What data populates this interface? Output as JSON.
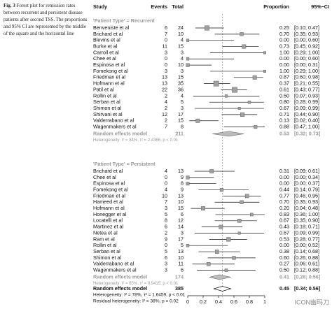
{
  "caption_label": "Fig. 3",
  "caption": "Forest plot for remission rates between recurrent and persistent disease patients after second TSS. The proportions and 95% CI are represented by the middle of the square and the horizontal line",
  "watermark": "ICON幽玛刀",
  "chart_data": {
    "type": "forest",
    "headers": {
      "study": "Study",
      "events": "Events",
      "total": "Total",
      "proportion": "Proportion",
      "ci": "95%−CI"
    },
    "xlim": [
      0,
      1
    ],
    "xticks": [
      0,
      0.2,
      0.4,
      0.6,
      0.8,
      1
    ],
    "square_color": "#a0a0a0",
    "groups": [
      {
        "title": "'Patient Type' = Recurrent",
        "rows": [
          {
            "study": "Benveniste et al",
            "events": 6,
            "total": 24,
            "proportion": {
              "value": 0.25,
              "label": "0.25"
            },
            "ci": {
              "lower": 0.1,
              "upper": 0.47,
              "label": "[0.10; 0.47]"
            }
          },
          {
            "study": "Brichard et al",
            "events": 7,
            "total": 10,
            "proportion": {
              "value": 0.7,
              "label": "0.70"
            },
            "ci": {
              "lower": 0.35,
              "upper": 0.93,
              "label": "[0.35; 0.93]"
            }
          },
          {
            "study": "Blevins et al",
            "events": 0,
            "total": 4,
            "proportion": {
              "value": 0,
              "label": "0.00"
            },
            "ci": {
              "lower": 0,
              "upper": 0.6,
              "label": "[0.00; 0.60]"
            }
          },
          {
            "study": "Burke et al",
            "events": 11,
            "total": 15,
            "proportion": {
              "value": 0.73,
              "label": "0.73"
            },
            "ci": {
              "lower": 0.45,
              "upper": 0.92,
              "label": "[0.45; 0.92]"
            }
          },
          {
            "study": "Carroll et al",
            "events": 3,
            "total": 3,
            "proportion": {
              "value": 1,
              "label": "1.00"
            },
            "ci": {
              "lower": 0.29,
              "upper": 1,
              "label": "[0.29; 1.00]"
            }
          },
          {
            "study": "Chee et al",
            "events": 0,
            "total": 4,
            "proportion": {
              "value": 0,
              "label": "0.00"
            },
            "ci": {
              "lower": 0,
              "upper": 0.6,
              "label": "[0.00; 0.60]"
            }
          },
          {
            "study": "Espinosa et al",
            "events": 0,
            "total": 10,
            "proportion": {
              "value": 0,
              "label": "0.00"
            },
            "ci": {
              "lower": 0,
              "upper": 0.31,
              "label": "[0.00; 0.31]"
            }
          },
          {
            "study": "Fomekong et al",
            "events": 3,
            "total": 3,
            "proportion": {
              "value": 1,
              "label": "1.00"
            },
            "ci": {
              "lower": 0.29,
              "upper": 1,
              "label": "[0.29; 1.00]"
            }
          },
          {
            "study": "Friedman et al",
            "events": 13,
            "total": 15,
            "proportion": {
              "value": 0.87,
              "label": "0.87"
            },
            "ci": {
              "lower": 0.6,
              "upper": 0.98,
              "label": "[0.60; 0.98]"
            }
          },
          {
            "study": "Hofmann et al",
            "events": 13,
            "total": 35,
            "proportion": {
              "value": 0.37,
              "label": "0.37"
            },
            "ci": {
              "lower": 0.21,
              "upper": 0.55,
              "label": "[0.21; 0.55]"
            }
          },
          {
            "study": "Patil et al",
            "events": 22,
            "total": 36,
            "proportion": {
              "value": 0.61,
              "label": "0.61"
            },
            "ci": {
              "lower": 0.43,
              "upper": 0.77,
              "label": "[0.43; 0.77]"
            }
          },
          {
            "study": "Rollin et al",
            "events": 2,
            "total": 4,
            "proportion": {
              "value": 0.5,
              "label": "0.50"
            },
            "ci": {
              "lower": 0.07,
              "upper": 0.93,
              "label": "[0.07; 0.93]"
            }
          },
          {
            "study": "Serban et al",
            "events": 4,
            "total": 5,
            "proportion": {
              "value": 0.8,
              "label": "0.80"
            },
            "ci": {
              "lower": 0.28,
              "upper": 0.99,
              "label": "[0.28; 0.99]"
            }
          },
          {
            "study": "Shimon et al",
            "events": 2,
            "total": 3,
            "proportion": {
              "value": 0.67,
              "label": "0.67"
            },
            "ci": {
              "lower": 0.09,
              "upper": 0.99,
              "label": "[0.09; 0.99]"
            }
          },
          {
            "study": "Shirvani et al",
            "events": 12,
            "total": 17,
            "proportion": {
              "value": 0.71,
              "label": "0.71"
            },
            "ci": {
              "lower": 0.44,
              "upper": 0.9,
              "label": "[0.44; 0.90]"
            }
          },
          {
            "study": "Valderrabano et al",
            "events": 2,
            "total": 15,
            "proportion": {
              "value": 0.13,
              "label": "0.13"
            },
            "ci": {
              "lower": 0.02,
              "upper": 0.4,
              "label": "[0.02; 0.40]"
            }
          },
          {
            "study": "Wagenmakers et al",
            "events": 7,
            "total": 8,
            "proportion": {
              "value": 0.88,
              "label": "0.88"
            },
            "ci": {
              "lower": 0.47,
              "upper": 1,
              "label": "[0.47; 1.00]"
            }
          }
        ],
        "summary": {
          "study": "Random effects model",
          "total": 211,
          "proportion": {
            "value": 0.53,
            "label": "0.53"
          },
          "ci": {
            "lower": 0.32,
            "upper": 0.73,
            "label": "[0.32; 0.73]"
          }
        },
        "heterogeneity": "Heterogeneity: I² = 84%, τ² = 2.4366, p < 0.01"
      },
      {
        "title": "'Patient Type' = Persistent",
        "rows": [
          {
            "study": "Brichard et al",
            "events": 4,
            "total": 13,
            "proportion": {
              "value": 0.31,
              "label": "0.31"
            },
            "ci": {
              "lower": 0.09,
              "upper": 0.61,
              "label": "[0.09; 0.61]"
            }
          },
          {
            "study": "Chee et al",
            "events": 0,
            "total": 9,
            "proportion": {
              "value": 0,
              "label": "0.00"
            },
            "ci": {
              "lower": 0,
              "upper": 0.34,
              "label": "[0.00; 0.34]"
            }
          },
          {
            "study": "Espinosa et al",
            "events": 0,
            "total": 8,
            "proportion": {
              "value": 0,
              "label": "0.00"
            },
            "ci": {
              "lower": 0,
              "upper": 0.37,
              "label": "[0.00; 0.37]"
            }
          },
          {
            "study": "Fomekong et al",
            "events": 4,
            "total": 9,
            "proportion": {
              "value": 0.44,
              "label": "0.44"
            },
            "ci": {
              "lower": 0.14,
              "upper": 0.79,
              "label": "[0.14; 0.79]"
            }
          },
          {
            "study": "Friedman et al",
            "events": 10,
            "total": 13,
            "proportion": {
              "value": 0.77,
              "label": "0.77"
            },
            "ci": {
              "lower": 0.46,
              "upper": 0.95,
              "label": "[0.46; 0.95]"
            }
          },
          {
            "study": "Hameed et al",
            "events": 7,
            "total": 10,
            "proportion": {
              "value": 0.7,
              "label": "0.70"
            },
            "ci": {
              "lower": 0.35,
              "upper": 0.93,
              "label": "[0.35; 0.93]"
            }
          },
          {
            "study": "Hofmann et al",
            "events": 3,
            "total": 15,
            "proportion": {
              "value": 0.2,
              "label": "0.20"
            },
            "ci": {
              "lower": 0.04,
              "upper": 0.48,
              "label": "[0.04; 0.48]"
            }
          },
          {
            "study": "Honegger et al",
            "events": 5,
            "total": 6,
            "proportion": {
              "value": 0.83,
              "label": "0.83"
            },
            "ci": {
              "lower": 0.36,
              "upper": 1,
              "label": "[0.36; 1.00]"
            }
          },
          {
            "study": "Locatelli et al",
            "events": 8,
            "total": 12,
            "proportion": {
              "value": 0.67,
              "label": "0.67"
            },
            "ci": {
              "lower": 0.35,
              "upper": 0.9,
              "label": "[0.35; 0.90]"
            }
          },
          {
            "study": "Martinez et al",
            "events": 6,
            "total": 14,
            "proportion": {
              "value": 0.43,
              "label": "0.43"
            },
            "ci": {
              "lower": 0.18,
              "upper": 0.71,
              "label": "[0.18; 0.71]"
            }
          },
          {
            "study": "Netea et al",
            "events": 2,
            "total": 3,
            "proportion": {
              "value": 0.67,
              "label": "0.67"
            },
            "ci": {
              "lower": 0.09,
              "upper": 0.99,
              "label": "[0.09; 0.99]"
            }
          },
          {
            "study": "Ram et al",
            "events": 9,
            "total": 17,
            "proportion": {
              "value": 0.53,
              "label": "0.53"
            },
            "ci": {
              "lower": 0.28,
              "upper": 0.77,
              "label": "[0.28; 0.77]"
            }
          },
          {
            "study": "Rollin et al",
            "events": 0,
            "total": 5,
            "proportion": {
              "value": 0,
              "label": "0.00"
            },
            "ci": {
              "lower": 0,
              "upper": 0.52,
              "label": "[0.00; 0.52]"
            }
          },
          {
            "study": "Serban et al",
            "events": 5,
            "total": 13,
            "proportion": {
              "value": 0.38,
              "label": "0.38"
            },
            "ci": {
              "lower": 0.14,
              "upper": 0.68,
              "label": "[0.14; 0.68]"
            }
          },
          {
            "study": "Shimon et al",
            "events": 6,
            "total": 10,
            "proportion": {
              "value": 0.6,
              "label": "0.60"
            },
            "ci": {
              "lower": 0.26,
              "upper": 0.88,
              "label": "[0.26; 0.88]"
            }
          },
          {
            "study": "Valderrabano et al",
            "events": 3,
            "total": 11,
            "proportion": {
              "value": 0.27,
              "label": "0.27"
            },
            "ci": {
              "lower": 0.06,
              "upper": 0.61,
              "label": "[0.06; 0.61]"
            }
          },
          {
            "study": "Wagenmakers et al",
            "events": 3,
            "total": 6,
            "proportion": {
              "value": 0.5,
              "label": "0.50"
            },
            "ci": {
              "lower": 0.12,
              "upper": 0.88,
              "label": "[0.12; 0.88]"
            }
          }
        ],
        "summary": {
          "study": "Random effects model",
          "total": 174,
          "proportion": {
            "value": 0.41,
            "label": "0.41"
          },
          "ci": {
            "lower": 0.28,
            "upper": 0.56,
            "label": "[0.28; 0.56]"
          }
        },
        "heterogeneity": "Heterogeneity: I² = 65%, τ² = 0.9415, p < 0.01"
      }
    ],
    "overall": {
      "study": "Random effects model",
      "total": 385,
      "proportion": {
        "value": 0.45,
        "label": "0.45"
      },
      "ci": {
        "lower": 0.34,
        "upper": 0.56,
        "label": "[0.34; 0.56]"
      }
    },
    "heterogeneity": "Heterogeneity: I² = 78%, τ² = 1.6459, p < 0.01",
    "residual_heterogeneity": "Residual heterogeneity: I² = 38%, p = 0.02"
  }
}
